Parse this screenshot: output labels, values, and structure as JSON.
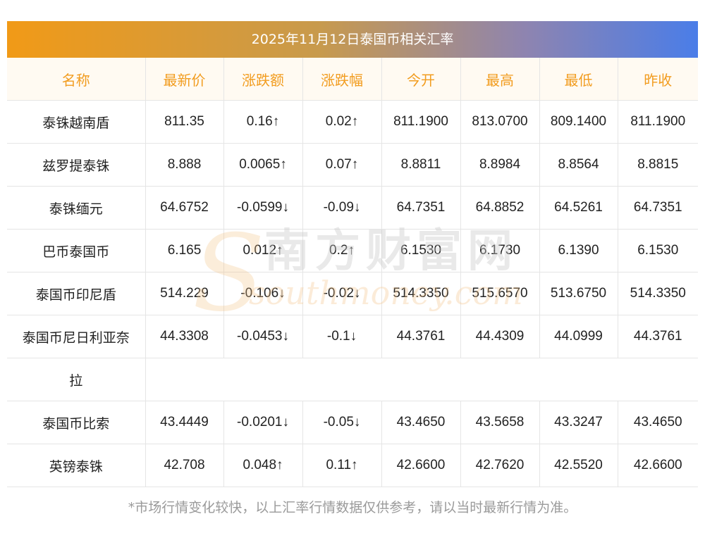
{
  "title": "2025年11月12日泰国币相关汇率",
  "headers": [
    "名称",
    "最新价",
    "涨跌额",
    "涨跌幅",
    "今开",
    "最高",
    "最低",
    "昨收"
  ],
  "rows": [
    {
      "name": "泰铢越南盾",
      "latest": "811.35",
      "change": "0.16↑",
      "pct": "0.02↑",
      "open": "811.1900",
      "high": "813.0700",
      "low": "809.1400",
      "prev": "811.1900",
      "dir": "up"
    },
    {
      "name": "兹罗提泰铢",
      "latest": "8.888",
      "change": "0.0065↑",
      "pct": "0.07↑",
      "open": "8.8811",
      "high": "8.8984",
      "low": "8.8564",
      "prev": "8.8815",
      "dir": "up"
    },
    {
      "name": "泰铢缅元",
      "latest": "64.6752",
      "change": "-0.0599↓",
      "pct": "-0.09↓",
      "open": "64.7351",
      "high": "64.8852",
      "low": "64.5261",
      "prev": "64.7351",
      "dir": "down"
    },
    {
      "name": "巴币泰国币",
      "latest": "6.165",
      "change": "0.012↑",
      "pct": "0.2↑",
      "open": "6.1530",
      "high": "6.1730",
      "low": "6.1390",
      "prev": "6.1530",
      "dir": "up"
    },
    {
      "name": "泰国币印尼盾",
      "latest": "514.229",
      "change": "-0.106↓",
      "pct": "-0.02↓",
      "open": "514.3350",
      "high": "515.6570",
      "low": "513.6750",
      "prev": "514.3350",
      "dir": "down"
    },
    {
      "name": "泰国币尼日利亚奈",
      "name_wrap": "拉",
      "latest": "44.3308",
      "change": "-0.0453↓",
      "pct": "-0.1↓",
      "open": "44.3761",
      "high": "44.4309",
      "low": "44.0999",
      "prev": "44.3761",
      "dir": "down"
    },
    {
      "name": "泰国币比索",
      "latest": "43.4449",
      "change": "-0.0201↓",
      "pct": "-0.05↓",
      "open": "43.4650",
      "high": "43.5658",
      "low": "43.3247",
      "prev": "43.4650",
      "dir": "down"
    },
    {
      "name": "英镑泰铢",
      "latest": "42.708",
      "change": "0.048↑",
      "pct": "0.11↑",
      "open": "42.6600",
      "high": "42.7620",
      "low": "42.5520",
      "prev": "42.6600",
      "dir": "up"
    }
  ],
  "watermark": {
    "cn": "南方财富网",
    "en": "southmoney.com"
  },
  "footnote": "*市场行情变化较快，以上汇率行情数据仅供参考，请以当时最新行情为准。",
  "colors": {
    "up": "#e0161c",
    "down": "#13850f",
    "header_text": "#f29c1f"
  }
}
